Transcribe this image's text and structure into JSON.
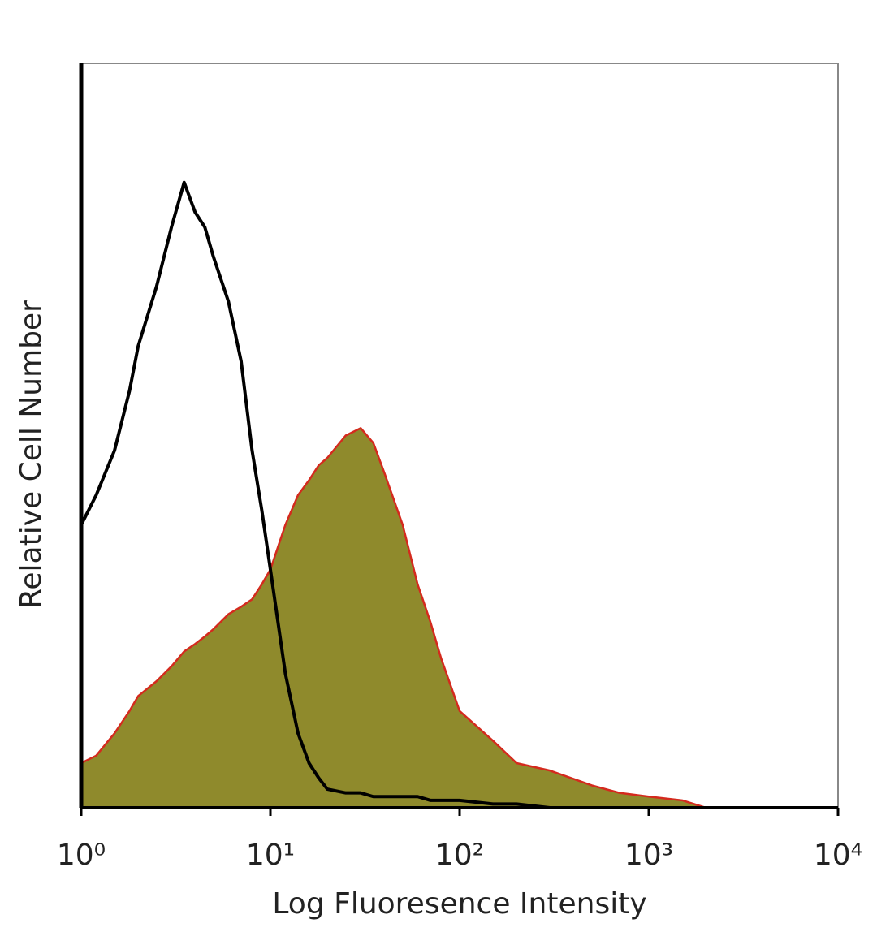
{
  "chart_data": {
    "type": "area",
    "xlabel": "Log Fluoresence Intensity",
    "ylabel": "Relative Cell Number",
    "xscale": "log",
    "xlim": [
      1,
      10000
    ],
    "xticks": [
      {
        "value": 1,
        "label": "10⁰"
      },
      {
        "value": 10,
        "label": "10¹"
      },
      {
        "value": 100,
        "label": "10²"
      },
      {
        "value": 1000,
        "label": "10³"
      },
      {
        "value": 10000,
        "label": "10⁴"
      }
    ],
    "ylim": [
      0,
      100
    ],
    "x": [
      1,
      1.2,
      1.5,
      1.8,
      2,
      2.5,
      3,
      3.5,
      4,
      4.5,
      5,
      6,
      7,
      8,
      9,
      10,
      12,
      14,
      16,
      18,
      20,
      25,
      30,
      35,
      40,
      50,
      60,
      70,
      80,
      100,
      150,
      200,
      300,
      500,
      700,
      1000,
      1500,
      2000,
      5000,
      10000
    ],
    "series": [
      {
        "color": "#d42a1e",
        "fill": "#8f8a2c",
        "values": [
          6,
          7,
          10,
          13,
          15,
          17,
          19,
          21,
          22,
          23,
          24,
          26,
          27,
          28,
          30,
          32,
          38,
          42,
          44,
          46,
          47,
          50,
          51,
          49,
          45,
          38,
          30,
          25,
          20,
          13,
          9,
          6,
          5,
          3,
          2,
          1.5,
          1,
          0,
          0,
          0
        ]
      },
      {
        "color": "#000000",
        "values": [
          38,
          42,
          48,
          56,
          62,
          70,
          78,
          84,
          80,
          78,
          74,
          68,
          60,
          48,
          40,
          32,
          18,
          10,
          6,
          4,
          2.5,
          2,
          2,
          1.5,
          1.5,
          1.5,
          1.5,
          1,
          1,
          1,
          0.5,
          0.5,
          0,
          0,
          0,
          0,
          0,
          0,
          0,
          0
        ]
      }
    ]
  }
}
